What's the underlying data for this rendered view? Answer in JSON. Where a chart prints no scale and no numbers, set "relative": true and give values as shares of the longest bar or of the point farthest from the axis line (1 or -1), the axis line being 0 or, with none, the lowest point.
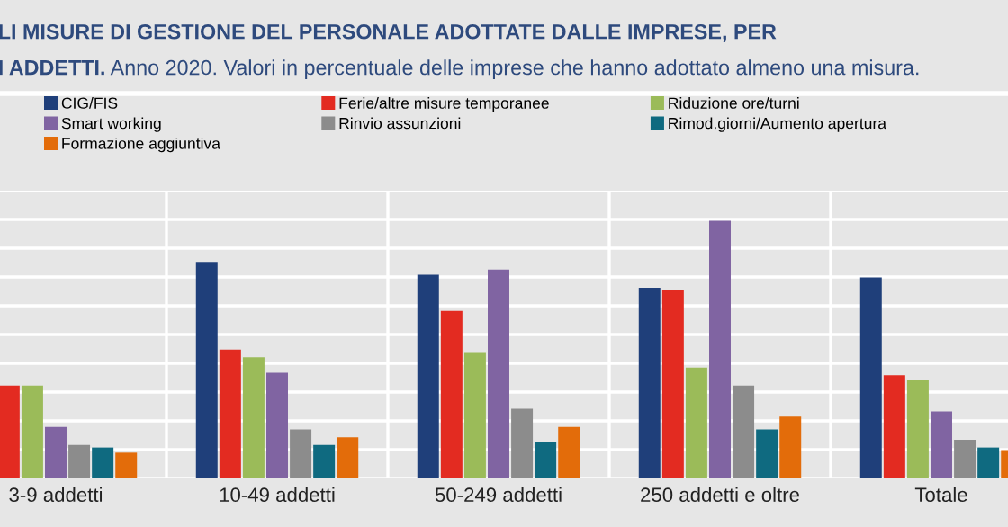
{
  "chart_data": {
    "type": "bar",
    "relative": true,
    "title": "LI MISURE DI GESTIONE DEL PERSONALE ADOTTATE DALLE IMPRESE, PER\nI ADDETTI.",
    "subtitle": "Anno 2020. Valori in percentuale delle imprese che hanno adottato almeno una misura.",
    "categories": [
      "3-9 addetti",
      "10-49 addetti",
      "50-249 addetti",
      "250 addetti e oltre",
      "Totale"
    ],
    "series": [
      {
        "name": "CIG/FIS",
        "color": "#1f3f7a",
        "values": [
          null,
          0.84,
          0.79,
          0.74,
          0.78
        ]
      },
      {
        "name": "Ferie/altre misure temporanee",
        "color": "#e32b21",
        "values": [
          0.36,
          0.5,
          0.65,
          0.73,
          0.4
        ]
      },
      {
        "name": "Riduzione ore/turni",
        "color": "#9bbb59",
        "values": [
          0.36,
          0.47,
          0.49,
          0.43,
          0.38
        ]
      },
      {
        "name": "Smart working",
        "color": "#8064a2",
        "values": [
          0.2,
          0.41,
          0.81,
          1.0,
          0.26
        ]
      },
      {
        "name": "Rinvio assunzioni",
        "color": "#8c8c8c",
        "values": [
          0.13,
          0.19,
          0.27,
          0.36,
          0.15
        ]
      },
      {
        "name": "Rimod.giorni/Aumento apertura",
        "color": "#0f6a80",
        "values": [
          0.12,
          0.13,
          0.14,
          0.19,
          0.12
        ]
      },
      {
        "name": "Formazione aggiuntiva",
        "color": "#e36c0a",
        "values": [
          0.1,
          0.16,
          0.2,
          0.24,
          0.11
        ]
      }
    ],
    "grid": true,
    "legend": "top",
    "tick_labels": "x"
  }
}
